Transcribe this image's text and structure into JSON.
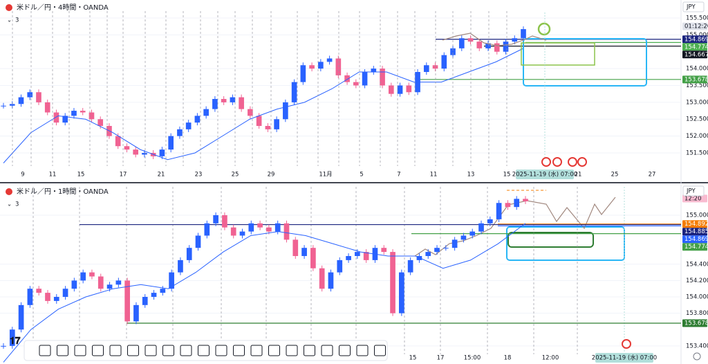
{
  "chart_data": [
    {
      "type": "candlestick",
      "title": "米ドル／円・4時間・OANDA",
      "indicator": "3",
      "currency": "JPY",
      "countdown": "01:12:20",
      "up_color": "#2962ff",
      "down_color": "#f06292",
      "ma_color": "#2962ff",
      "values": [
        152.9,
        152.95,
        153.15,
        153.3,
        153.0,
        152.7,
        152.4,
        152.6,
        152.75,
        152.7,
        152.5,
        152.3,
        152.0,
        151.7,
        151.6,
        151.45,
        151.5,
        151.4,
        151.6,
        152.0,
        152.2,
        152.4,
        152.6,
        152.8,
        153.1,
        153.0,
        153.15,
        152.8,
        152.6,
        152.3,
        152.2,
        152.5,
        153.0,
        153.6,
        154.1,
        154.0,
        154.2,
        154.3,
        153.8,
        153.6,
        153.5,
        153.9,
        154.0,
        153.5,
        153.25,
        153.5,
        153.3,
        153.9,
        154.1,
        154.0,
        154.4,
        154.6,
        154.9,
        154.8,
        154.6,
        154.75,
        154.5,
        154.8,
        154.9,
        155.17
      ],
      "ma": [
        151.2,
        152.1,
        152.6,
        152.5,
        152.1,
        151.6,
        151.3,
        151.5,
        152.0,
        152.5,
        152.8,
        153.0,
        153.4,
        153.9,
        153.9,
        153.6,
        153.6,
        153.9,
        154.2,
        154.6
      ],
      "ylim": [
        151.11,
        155.705
      ],
      "yticks": [
        {
          "value": 151.5,
          "label": "151.500"
        },
        {
          "value": 152,
          "label": "152.000"
        },
        {
          "value": 152.5,
          "label": "152.500"
        },
        {
          "value": 153,
          "label": "153.000"
        },
        {
          "value": 153.5,
          "label": "153.500"
        },
        {
          "value": 154,
          "label": "154.000"
        },
        {
          "value": 155,
          "label": "155.000"
        },
        {
          "value": 155.5,
          "label": "155.500"
        }
      ],
      "x_labels": [
        "9",
        "11",
        "15",
        "17",
        "21",
        "23",
        "25",
        "29",
        "11月",
        "5",
        "7",
        "11",
        "13",
        "15",
        "21",
        "25",
        "27"
      ],
      "cursor_date": "2025-11-19 (水)   07:00",
      "price_tags": [
        {
          "value": 154.869,
          "color": "#1a237e"
        },
        {
          "value": 154.774,
          "color": "#4caf50"
        },
        {
          "value": 154.667,
          "color": "#131722"
        },
        {
          "value": 153.678,
          "color": "#43a047"
        }
      ]
    },
    {
      "type": "candlestick",
      "title": "米ドル／円・1時間・OANDA",
      "indicator": "3",
      "currency": "JPY",
      "countdown": "12:20",
      "up_color": "#2962ff",
      "down_color": "#f06292",
      "ma_color": "#2962ff",
      "values": [
        153.4,
        153.6,
        153.9,
        154.1,
        154.05,
        153.95,
        154.0,
        154.1,
        154.2,
        154.3,
        154.25,
        154.1,
        154.15,
        154.2,
        153.7,
        153.9,
        154.0,
        154.05,
        154.1,
        154.3,
        154.45,
        154.6,
        154.75,
        154.9,
        155.0,
        154.85,
        154.75,
        154.8,
        154.9,
        154.85,
        154.8,
        154.9,
        154.7,
        154.5,
        154.6,
        154.35,
        154.1,
        154.3,
        154.45,
        154.5,
        154.55,
        154.45,
        154.6,
        154.55,
        153.8,
        154.3,
        154.45,
        154.5,
        154.55,
        154.6,
        154.6,
        154.7,
        154.75,
        154.8,
        154.9,
        154.95,
        155.15,
        155.1,
        155.2,
        155.17
      ],
      "ma": [
        153.2,
        153.6,
        153.85,
        154.0,
        154.1,
        154.15,
        154.1,
        154.3,
        154.55,
        154.75,
        154.8,
        154.75,
        154.65,
        154.55,
        154.5,
        154.5,
        154.35,
        154.45,
        154.65,
        154.9
      ],
      "ylim": [
        153.297,
        155.347
      ],
      "yticks": [
        {
          "value": 153.4,
          "label": "153.400"
        },
        {
          "value": 153.8,
          "label": "153.800"
        },
        {
          "value": 154,
          "label": "154.000"
        },
        {
          "value": 154.2,
          "label": "154.200"
        },
        {
          "value": 154.4,
          "label": "154.400"
        },
        {
          "value": 155,
          "label": "155.000"
        }
      ],
      "x_labels": [
        "15",
        "17",
        "15:00",
        "18",
        "12:00"
      ],
      "cursor_date": "2025-11-19 (水)   07:00",
      "price_tags": [
        {
          "value": 154.892,
          "color": "#f57c00"
        },
        {
          "value": 154.885,
          "color": "#1a237e"
        },
        {
          "value": 154.869,
          "color": "#2962ff"
        },
        {
          "value": 154.774,
          "color": "#43a047"
        },
        {
          "value": 153.678,
          "color": "#2e7d32"
        }
      ]
    }
  ]
}
